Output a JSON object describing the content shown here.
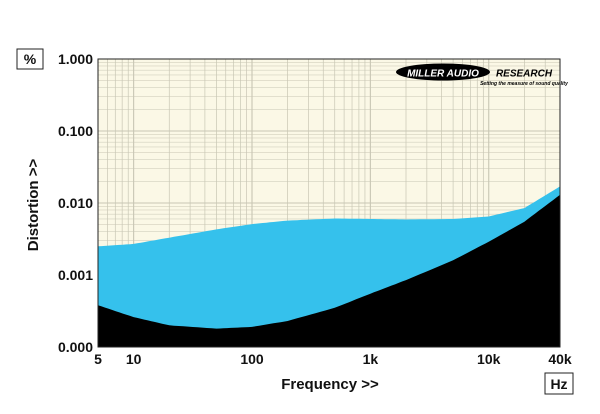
{
  "chart_data": {
    "type": "area",
    "title": "",
    "xlabel": "Frequency >>",
    "ylabel": "Distortion >>",
    "x_unit": "Hz",
    "y_unit": "%",
    "x_scale": "log",
    "y_scale": "log",
    "xlim": [
      5,
      40000
    ],
    "ylim": [
      0.0001,
      1.0
    ],
    "x_ticks": [
      {
        "value": 5,
        "label": "5"
      },
      {
        "value": 10,
        "label": "10"
      },
      {
        "value": 100,
        "label": "100"
      },
      {
        "value": 1000,
        "label": "1k"
      },
      {
        "value": 10000,
        "label": "10k"
      },
      {
        "value": 40000,
        "label": "40k"
      }
    ],
    "y_ticks": [
      {
        "value": 1.0,
        "label": "1.000"
      },
      {
        "value": 0.1,
        "label": "0.100"
      },
      {
        "value": 0.01,
        "label": "0.010"
      },
      {
        "value": 0.001,
        "label": "0.001"
      },
      {
        "value": 0.0001,
        "label": "0.000"
      }
    ],
    "grid": true,
    "series": [
      {
        "x": [
          5,
          10,
          20,
          50,
          100,
          200,
          500,
          1000,
          2000,
          5000,
          10000,
          20000,
          40000
        ],
        "values": [
          0.0025,
          0.0027,
          0.0033,
          0.0043,
          0.0051,
          0.0057,
          0.0061,
          0.006,
          0.0059,
          0.006,
          0.0065,
          0.0085,
          0.017
        ],
        "color": "#35c1ec"
      },
      {
        "x": [
          5,
          10,
          20,
          50,
          100,
          200,
          500,
          1000,
          2000,
          5000,
          10000,
          20000,
          40000
        ],
        "values": [
          0.00038,
          0.00026,
          0.0002,
          0.00018,
          0.00019,
          0.00023,
          0.00035,
          0.00055,
          0.00085,
          0.0016,
          0.0029,
          0.0055,
          0.013
        ],
        "color": "#000000"
      }
    ],
    "colors": {
      "plot_background": "#fbf8e6",
      "grid": "#c8c6b4"
    }
  },
  "logo": {
    "brand": "MILLER AUDIO RESEARCH",
    "tagline": "Setting the measure of sound quality"
  }
}
